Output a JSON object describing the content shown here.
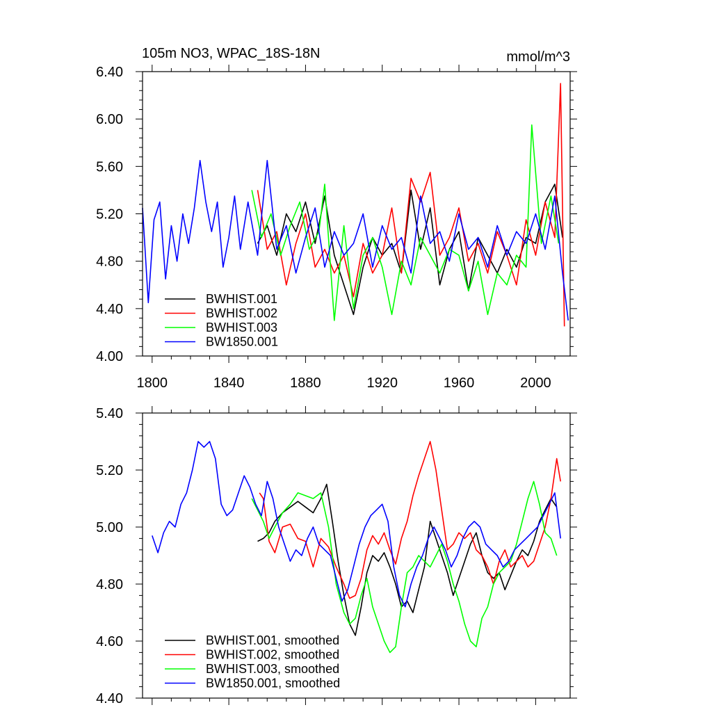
{
  "chart_data": [
    {
      "type": "line",
      "title": "105m NO3, WPAC_18S-18N",
      "units": "mmol/m^3",
      "xlim": [
        1795,
        2018
      ],
      "ylim": [
        4.0,
        6.4
      ],
      "x_ticks": [
        1800,
        1840,
        1880,
        1920,
        1960,
        2000
      ],
      "x_tick_labels": [
        "1800",
        "1840",
        "1880",
        "1920",
        "1960",
        "2000"
      ],
      "y_ticks": [
        4.0,
        4.4,
        4.8,
        5.2,
        5.6,
        6.0,
        6.4
      ],
      "y_tick_labels": [
        "4.00",
        "4.40",
        "4.80",
        "5.20",
        "5.60",
        "6.00",
        "6.40"
      ],
      "legend_position": "bottom-left",
      "grid": false,
      "series": [
        {
          "name": "BWHIST.001",
          "color": "#000000",
          "x": [
            1855,
            1860,
            1865,
            1870,
            1875,
            1880,
            1885,
            1890,
            1895,
            1900,
            1905,
            1910,
            1915,
            1920,
            1925,
            1930,
            1935,
            1940,
            1945,
            1950,
            1955,
            1960,
            1965,
            1970,
            1975,
            1980,
            1985,
            1990,
            1995,
            2000,
            2005,
            2010,
            2014
          ],
          "y": [
            4.95,
            5.1,
            4.85,
            5.2,
            5.05,
            5.3,
            4.95,
            5.35,
            4.85,
            4.6,
            4.35,
            4.75,
            5.0,
            4.85,
            4.95,
            4.7,
            5.4,
            4.9,
            5.25,
            4.6,
            4.9,
            5.05,
            4.55,
            5.0,
            4.85,
            4.7,
            4.9,
            4.75,
            5.0,
            4.95,
            5.3,
            5.45,
            5.0
          ]
        },
        {
          "name": "BWHIST.002",
          "color": "#ff0000",
          "x": [
            1855,
            1860,
            1865,
            1870,
            1875,
            1880,
            1885,
            1890,
            1895,
            1900,
            1905,
            1910,
            1915,
            1920,
            1925,
            1930,
            1935,
            1940,
            1945,
            1950,
            1955,
            1960,
            1965,
            1970,
            1975,
            1980,
            1985,
            1990,
            1995,
            2000,
            2005,
            2010,
            2013,
            2015
          ],
          "y": [
            5.4,
            4.9,
            5.05,
            4.6,
            4.95,
            5.2,
            4.75,
            4.9,
            4.7,
            4.85,
            4.5,
            4.95,
            4.7,
            4.85,
            5.25,
            4.7,
            5.5,
            5.3,
            5.55,
            4.85,
            5.0,
            5.25,
            4.8,
            4.95,
            4.7,
            5.05,
            4.85,
            4.6,
            5.15,
            4.85,
            5.3,
            5.0,
            6.3,
            4.25
          ]
        },
        {
          "name": "BWHIST.003",
          "color": "#00ff00",
          "x": [
            1852,
            1857,
            1862,
            1867,
            1872,
            1877,
            1882,
            1887,
            1890,
            1895,
            1900,
            1905,
            1910,
            1915,
            1920,
            1925,
            1930,
            1935,
            1940,
            1945,
            1950,
            1955,
            1960,
            1965,
            1970,
            1975,
            1980,
            1985,
            1990,
            1995,
            1998,
            2003,
            2008,
            2012
          ],
          "y": [
            5.4,
            5.0,
            5.2,
            4.85,
            5.1,
            5.3,
            4.9,
            5.05,
            5.45,
            4.3,
            5.1,
            4.4,
            4.85,
            5.0,
            4.75,
            4.35,
            4.8,
            4.6,
            5.0,
            4.85,
            4.7,
            4.9,
            4.85,
            4.55,
            4.8,
            4.35,
            4.7,
            4.6,
            4.85,
            4.75,
            5.95,
            4.95,
            5.35,
            4.95
          ]
        },
        {
          "name": "BW1850.001",
          "color": "#0000ff",
          "x": [
            1795,
            1798,
            1801,
            1804,
            1807,
            1810,
            1813,
            1816,
            1819,
            1822,
            1825,
            1828,
            1831,
            1834,
            1837,
            1840,
            1843,
            1846,
            1850,
            1855,
            1860,
            1865,
            1870,
            1875,
            1880,
            1885,
            1890,
            1895,
            1900,
            1905,
            1910,
            1915,
            1920,
            1925,
            1930,
            1935,
            1940,
            1945,
            1950,
            1955,
            1960,
            1965,
            1970,
            1975,
            1980,
            1985,
            1990,
            1995,
            2000,
            2005,
            2010,
            2014,
            2017
          ],
          "y": [
            5.25,
            4.45,
            5.15,
            5.3,
            4.65,
            5.1,
            4.8,
            5.2,
            4.95,
            5.25,
            5.65,
            5.3,
            5.05,
            5.3,
            4.75,
            5.0,
            5.35,
            4.9,
            5.3,
            4.85,
            5.65,
            4.9,
            5.1,
            4.7,
            5.0,
            5.25,
            4.75,
            5.05,
            4.85,
            4.95,
            5.2,
            4.75,
            5.1,
            4.9,
            5.0,
            4.7,
            5.35,
            4.95,
            5.05,
            4.8,
            5.2,
            4.9,
            5.0,
            4.75,
            5.1,
            4.85,
            5.05,
            4.95,
            5.2,
            4.9,
            5.35,
            4.7,
            4.3
          ]
        }
      ]
    },
    {
      "type": "line",
      "xlim": [
        1795,
        2018
      ],
      "ylim": [
        4.4,
        5.4
      ],
      "x_ticks": [
        1800,
        1840,
        1880,
        1920,
        1960,
        2000
      ],
      "y_ticks": [
        4.4,
        4.6,
        4.8,
        5.0,
        5.2,
        5.4
      ],
      "y_tick_labels": [
        "4.40",
        "4.60",
        "4.80",
        "5.00",
        "5.20",
        "5.40"
      ],
      "legend_position": "bottom-left",
      "grid": false,
      "series": [
        {
          "name": "BWHIST.001, smoothed",
          "color": "#000000",
          "x": [
            1855,
            1858,
            1861,
            1864,
            1868,
            1872,
            1876,
            1880,
            1884,
            1888,
            1891,
            1894,
            1897,
            1900,
            1903,
            1906,
            1909,
            1912,
            1915,
            1918,
            1921,
            1924,
            1927,
            1930,
            1933,
            1936,
            1939,
            1942,
            1945,
            1948,
            1951,
            1954,
            1957,
            1960,
            1963,
            1966,
            1969,
            1972,
            1975,
            1978,
            1981,
            1984,
            1987,
            1990,
            1993,
            1996,
            1999,
            2002,
            2005,
            2008,
            2011
          ],
          "y": [
            4.95,
            4.96,
            4.98,
            5.02,
            5.05,
            5.07,
            5.09,
            5.07,
            5.05,
            5.1,
            5.15,
            5.02,
            4.88,
            4.76,
            4.66,
            4.62,
            4.72,
            4.84,
            4.9,
            4.88,
            4.91,
            4.86,
            4.8,
            4.72,
            4.74,
            4.7,
            4.78,
            4.86,
            5.02,
            4.96,
            4.9,
            4.84,
            4.76,
            4.82,
            4.88,
            4.94,
            4.98,
            4.9,
            4.84,
            4.82,
            4.84,
            4.78,
            4.83,
            4.88,
            4.92,
            4.9,
            4.95,
            5.02,
            5.06,
            5.1,
            5.07
          ]
        },
        {
          "name": "BWHIST.002, smoothed",
          "color": "#ff0000",
          "x": [
            1856,
            1858,
            1861,
            1864,
            1868,
            1872,
            1876,
            1880,
            1884,
            1888,
            1892,
            1896,
            1900,
            1903,
            1906,
            1909,
            1912,
            1915,
            1918,
            1921,
            1924,
            1927,
            1930,
            1933,
            1936,
            1939,
            1942,
            1945,
            1948,
            1951,
            1954,
            1957,
            1960,
            1963,
            1966,
            1969,
            1972,
            1975,
            1978,
            1981,
            1984,
            1987,
            1990,
            1993,
            1996,
            1999,
            2002,
            2005,
            2008,
            2011,
            2013
          ],
          "y": [
            5.12,
            5.1,
            4.95,
            4.91,
            5.0,
            5.01,
            4.96,
            4.95,
            4.86,
            4.96,
            4.93,
            4.86,
            4.8,
            4.75,
            4.76,
            4.82,
            4.92,
            4.97,
            4.94,
            4.98,
            4.92,
            4.87,
            4.96,
            5.02,
            5.11,
            5.18,
            5.24,
            5.3,
            5.2,
            5.06,
            4.92,
            4.94,
            4.98,
            4.96,
            4.98,
            4.92,
            4.9,
            4.86,
            4.8,
            4.88,
            4.92,
            4.86,
            4.88,
            4.9,
            4.86,
            4.88,
            4.94,
            5.0,
            5.1,
            5.24,
            5.16
          ]
        },
        {
          "name": "BWHIST.003, smoothed",
          "color": "#00ff00",
          "x": [
            1852,
            1855,
            1858,
            1861,
            1864,
            1868,
            1872,
            1876,
            1880,
            1884,
            1888,
            1892,
            1896,
            1900,
            1903,
            1906,
            1909,
            1912,
            1915,
            1918,
            1921,
            1924,
            1927,
            1930,
            1933,
            1936,
            1939,
            1942,
            1945,
            1948,
            1951,
            1954,
            1957,
            1960,
            1963,
            1966,
            1969,
            1972,
            1975,
            1978,
            1981,
            1984,
            1987,
            1990,
            1993,
            1996,
            1999,
            2002,
            2005,
            2008,
            2011
          ],
          "y": [
            5.1,
            5.06,
            5.02,
            4.96,
            5.0,
            5.05,
            5.08,
            5.12,
            5.11,
            5.1,
            5.12,
            5.0,
            4.8,
            4.7,
            4.66,
            4.68,
            4.76,
            4.82,
            4.72,
            4.66,
            4.6,
            4.56,
            4.58,
            4.72,
            4.84,
            4.86,
            4.9,
            4.88,
            4.86,
            4.9,
            4.94,
            4.88,
            4.8,
            4.74,
            4.66,
            4.6,
            4.58,
            4.68,
            4.72,
            4.8,
            4.84,
            4.86,
            4.88,
            4.94,
            5.02,
            5.1,
            5.16,
            5.08,
            4.98,
            4.96,
            4.9
          ]
        },
        {
          "name": "BW1850.001, smoothed",
          "color": "#0000ff",
          "x": [
            1800,
            1803,
            1806,
            1809,
            1812,
            1815,
            1818,
            1821,
            1824,
            1827,
            1830,
            1833,
            1836,
            1839,
            1842,
            1845,
            1848,
            1851,
            1854,
            1857,
            1860,
            1863,
            1866,
            1869,
            1872,
            1875,
            1878,
            1881,
            1884,
            1887,
            1890,
            1893,
            1896,
            1899,
            1902,
            1905,
            1908,
            1911,
            1914,
            1917,
            1920,
            1923,
            1926,
            1929,
            1932,
            1935,
            1938,
            1941,
            1944,
            1947,
            1950,
            1953,
            1956,
            1959,
            1962,
            1965,
            1968,
            1971,
            1974,
            1977,
            1980,
            1983,
            1986,
            1989,
            1992,
            1995,
            1998,
            2001,
            2004,
            2007,
            2010,
            2013
          ],
          "y": [
            4.97,
            4.91,
            4.98,
            5.02,
            5.0,
            5.08,
            5.12,
            5.2,
            5.3,
            5.28,
            5.3,
            5.24,
            5.08,
            5.04,
            5.06,
            5.12,
            5.18,
            5.14,
            5.08,
            5.04,
            5.16,
            5.1,
            5.0,
            4.94,
            4.88,
            4.92,
            4.9,
            4.96,
            5.0,
            4.94,
            4.92,
            4.9,
            4.82,
            4.74,
            4.78,
            4.86,
            4.94,
            5.0,
            5.04,
            5.06,
            5.08,
            5.02,
            4.86,
            4.76,
            4.72,
            4.8,
            4.86,
            4.9,
            4.96,
            5.0,
            4.96,
            4.92,
            4.86,
            4.9,
            4.96,
            5.0,
            5.02,
            5.0,
            4.94,
            4.92,
            4.9,
            4.86,
            4.88,
            4.92,
            4.94,
            4.96,
            4.98,
            5.0,
            5.04,
            5.08,
            5.12,
            4.96
          ]
        }
      ]
    }
  ]
}
